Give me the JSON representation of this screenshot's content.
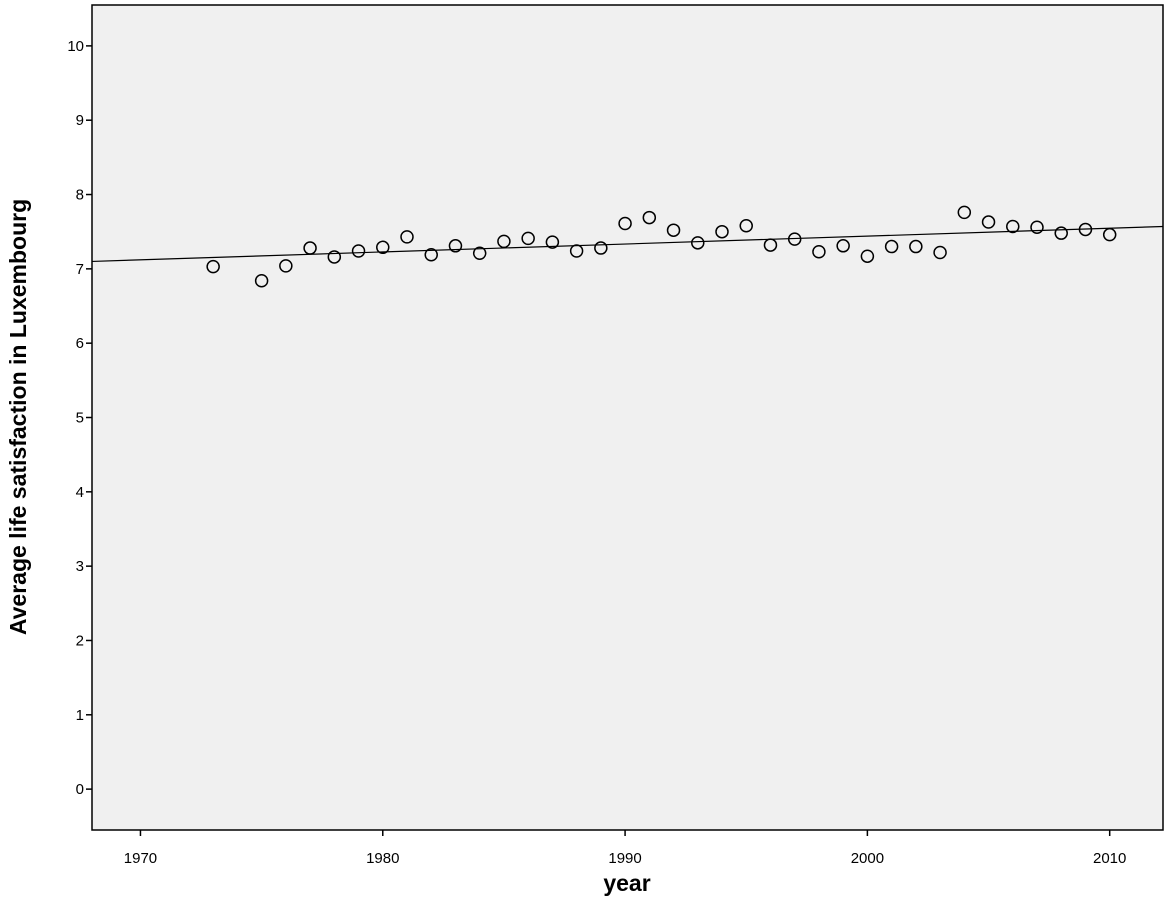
{
  "chart_data": {
    "type": "scatter",
    "title": "",
    "xlabel": "year",
    "ylabel": "Average life satisfaction in Luxembourg",
    "xlim": [
      1968,
      2012.2
    ],
    "ylim": [
      -0.55,
      10.55
    ],
    "xticks": [
      1970,
      1980,
      1990,
      2000,
      2010
    ],
    "yticks": [
      0,
      1,
      2,
      3,
      4,
      5,
      6,
      7,
      8,
      9,
      10
    ],
    "grid": false,
    "legend": "none",
    "plot_background": "#f0f0f0",
    "marker": "open-circle",
    "points": [
      {
        "x": 1973,
        "y": 7.03
      },
      {
        "x": 1975,
        "y": 6.84
      },
      {
        "x": 1976,
        "y": 7.04
      },
      {
        "x": 1977,
        "y": 7.28
      },
      {
        "x": 1978,
        "y": 7.16
      },
      {
        "x": 1979,
        "y": 7.24
      },
      {
        "x": 1980,
        "y": 7.29
      },
      {
        "x": 1981,
        "y": 7.43
      },
      {
        "x": 1982,
        "y": 7.19
      },
      {
        "x": 1983,
        "y": 7.31
      },
      {
        "x": 1984,
        "y": 7.21
      },
      {
        "x": 1985,
        "y": 7.37
      },
      {
        "x": 1986,
        "y": 7.41
      },
      {
        "x": 1987,
        "y": 7.36
      },
      {
        "x": 1988,
        "y": 7.24
      },
      {
        "x": 1989,
        "y": 7.28
      },
      {
        "x": 1990,
        "y": 7.61
      },
      {
        "x": 1991,
        "y": 7.69
      },
      {
        "x": 1992,
        "y": 7.52
      },
      {
        "x": 1993,
        "y": 7.35
      },
      {
        "x": 1994,
        "y": 7.5
      },
      {
        "x": 1995,
        "y": 7.58
      },
      {
        "x": 1996,
        "y": 7.32
      },
      {
        "x": 1997,
        "y": 7.4
      },
      {
        "x": 1998,
        "y": 7.23
      },
      {
        "x": 1999,
        "y": 7.31
      },
      {
        "x": 2000,
        "y": 7.17
      },
      {
        "x": 2001,
        "y": 7.3
      },
      {
        "x": 2002,
        "y": 7.3
      },
      {
        "x": 2003,
        "y": 7.22
      },
      {
        "x": 2004,
        "y": 7.76
      },
      {
        "x": 2005,
        "y": 7.63
      },
      {
        "x": 2006,
        "y": 7.57
      },
      {
        "x": 2007,
        "y": 7.56
      },
      {
        "x": 2008,
        "y": 7.48
      },
      {
        "x": 2009,
        "y": 7.53
      },
      {
        "x": 2010,
        "y": 7.46
      }
    ],
    "fit_line": {
      "type": "linear",
      "x": [
        1968,
        2012.2
      ],
      "y": [
        7.1,
        7.57
      ]
    }
  }
}
